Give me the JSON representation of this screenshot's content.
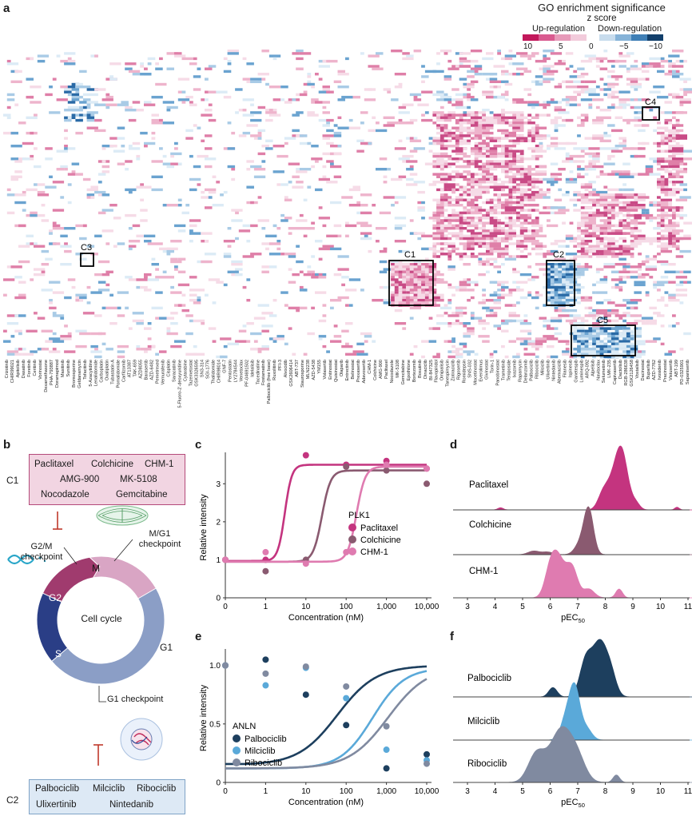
{
  "panels": {
    "a": "a",
    "b": "b",
    "c": "c",
    "d": "d",
    "e": "e",
    "f": "f"
  },
  "legend": {
    "title": "GO enrichment significance",
    "subtitle": "z score",
    "up": "Up-regulation",
    "down": "Down-regulation",
    "ticks": [
      "10",
      "5",
      "0",
      "−5",
      "−10"
    ],
    "up_colors": [
      "#c2185b",
      "#d95a8f",
      "#e79ab9",
      "#f2cbdb"
    ],
    "down_colors": [
      "#c8dced",
      "#86b3d8",
      "#3f7fb6",
      "#123f6b"
    ]
  },
  "heatmap": {
    "cluster_labels": [
      "C1",
      "C2",
      "C3",
      "C4",
      "C5"
    ],
    "drugs": [
      "Crizotinib",
      "CHIR99021",
      "Apitolisib",
      "Dasatinib",
      "Foretinib",
      "Ceritinib",
      "Vorinostat",
      "Dexamethasone",
      "PHA-793887",
      "Doramapimod",
      "Masitinib",
      "Sunitinib",
      "Bromosporine",
      "Geldanamycin",
      "Tofacitinib",
      "5-Azacytidine",
      "Lenalidomide",
      "Carboplatin",
      "Oxaliplatin",
      "Tubastatin A",
      "Pomalidomide",
      "Carfilzomib",
      "AT13387",
      "TAK-659",
      "AZD8055",
      "Barasertib",
      "AZD-6482",
      "Pemetrexed",
      "Vemurafenib",
      "Cisplatin",
      "Saracatinib",
      "5-Fluoro-2'-deoxyuridine",
      "Cytarabine",
      "Tazemetostat",
      "GSK3326595",
      "SN3-314",
      "SGI-1776",
      "Thalidomide",
      "CHIR98014",
      "GNF-7",
      "Pentostatin",
      "LY2784544",
      "Venetoclax",
      "PF-04691502",
      "Idelalisib",
      "Tacedinaline",
      "Fostamatinib",
      "Palbociclib (free base)",
      "Ruxolitinib",
      "PFI-3",
      "Alvocidib",
      "GSK2606414",
      "ABT-737",
      "Staurosporine",
      "MLN2238",
      "AZD-5438",
      "YM155",
      "Volasertib",
      "Entinostat",
      "Quisinostat",
      "Olaparib",
      "Entrectinib",
      "Belinostat",
      "Prexasertib",
      "Adavosertib",
      "CHM-1",
      "Colchicine",
      "AMG-900",
      "Paclitaxel",
      "Nocodazole",
      "MK-5108",
      "Gemcitabine",
      "Epothilone",
      "Bortezomib",
      "Bosutinib",
      "Dinaciclib",
      "BI-847325",
      "Flavopiridol",
      "Omipalisib",
      "Tanespimycin",
      "Zotiraciclib",
      "Rigosertib",
      "Romidepsin",
      "SNS-032",
      "Mocetinostat",
      "Everolimus",
      "Givinostat",
      "Torin-1",
      "Panobinostat",
      "Trametinib",
      "Teniposide",
      "Ixazomib",
      "Rapamycin",
      "Delanzomib",
      "Palbociclib",
      "Ribociclib",
      "Milciclib",
      "Ulixertinib",
      "Nintedanib",
      "Abemaciclib",
      "Filanesib",
      "Ispinesib",
      "Ganetespib",
      "Luminespib",
      "ARQ-092",
      "Alpelisib",
      "Navitoclax",
      "Selumetinib",
      "LMK-235",
      "Capivasertib",
      "Dactolisib",
      "RGB-286638",
      "GSK2126458",
      "Voxtalisib",
      "Dacinostat",
      "Buparlisib",
      "AZD-7762",
      "Ivosidenib",
      "Pracinostat",
      "Vistusertib",
      "ABT-199",
      "PD-0325901",
      "Sapanisertib"
    ]
  },
  "panel_b": {
    "c1_label": "C1",
    "c2_label": "C2",
    "c1_drugs": [
      "Paclitaxel",
      "Colchicine",
      "CHM-1",
      "AMG-900",
      "MK-5108",
      "Nocodazole",
      "Gemcitabine"
    ],
    "c2_drugs": [
      "Palbociclib",
      "Milciclib",
      "Ribociclib",
      "Ulixertinib",
      "Nintedanib"
    ],
    "cycle_center": "Cell cycle",
    "phases": [
      "M",
      "G1",
      "S",
      "G2"
    ],
    "checkpoints": {
      "g2m": "G2/M\ncheckpoint",
      "mg1": "M/G1\ncheckpoint",
      "g1": "G1 checkpoint"
    },
    "colors": {
      "M": "#d9a5c4",
      "G1": "#8b9ec6",
      "S": "#2a3e86",
      "G2": "#a03b6e"
    }
  },
  "chart_data": [
    {
      "id": "c",
      "type": "line",
      "title": "PLK1",
      "xlabel": "Concentration (nM)",
      "ylabel": "Relative intensity",
      "x_ticks": [
        "0",
        "1",
        "10",
        "100",
        "1,000",
        "10,000"
      ],
      "y_ticks": [
        "0",
        "1",
        "2",
        "3"
      ],
      "ylim": [
        0,
        3.7
      ],
      "legend_position": "right",
      "series": [
        {
          "name": "Paclitaxel",
          "color": "#c4347f",
          "points": [
            [
              0,
              1.0
            ],
            [
              1,
              1.0
            ],
            [
              10,
              3.75
            ],
            [
              100,
              3.5
            ],
            [
              1000,
              3.6
            ],
            [
              10000,
              3.4
            ]
          ],
          "ec50": 3,
          "bottom": 0.97,
          "top": 3.5,
          "hill": 5
        },
        {
          "name": "Colchicine",
          "color": "#8a5a70",
          "points": [
            [
              0,
              1.0
            ],
            [
              1,
              0.7
            ],
            [
              10,
              1.0
            ],
            [
              100,
              3.45
            ],
            [
              1000,
              3.35
            ],
            [
              10000,
              3.0
            ]
          ],
          "ec50": 25,
          "bottom": 0.95,
          "top": 3.35,
          "hill": 4
        },
        {
          "name": "CHM-1",
          "color": "#df7bb0",
          "points": [
            [
              0,
              1.0
            ],
            [
              1,
              1.2
            ],
            [
              10,
              0.9
            ],
            [
              100,
              1.2
            ],
            [
              1000,
              3.5
            ],
            [
              10000,
              3.4
            ]
          ],
          "ec50": 180,
          "bottom": 0.95,
          "top": 3.45,
          "hill": 4
        }
      ]
    },
    {
      "id": "d",
      "type": "area",
      "xlabel": "pEC",
      "xlabel_sub": "50",
      "x_ticks": [
        "3",
        "4",
        "5",
        "6",
        "7",
        "8",
        "9",
        "10",
        "11"
      ],
      "xlim": [
        3,
        11.5
      ],
      "series": [
        {
          "name": "Paclitaxel",
          "color": "#c4347f",
          "peaks": [
            [
              8.6,
              1.0,
              0.22
            ],
            [
              8.25,
              0.45,
              0.25
            ],
            [
              7.9,
              0.22,
              0.18
            ],
            [
              9.1,
              0.12,
              0.15
            ],
            [
              4.2,
              0.04,
              0.1
            ],
            [
              10.6,
              0.05,
              0.08
            ]
          ]
        },
        {
          "name": "Colchicine",
          "color": "#8a5a70",
          "peaks": [
            [
              7.4,
              1.0,
              0.17
            ],
            [
              7.1,
              0.25,
              0.2
            ],
            [
              5.4,
              0.08,
              0.2
            ],
            [
              5.9,
              0.06,
              0.2
            ]
          ]
        },
        {
          "name": "CHM-1",
          "color": "#df7bb0",
          "peaks": [
            [
              6.3,
              0.85,
              0.25
            ],
            [
              6.8,
              0.65,
              0.2
            ],
            [
              6.0,
              0.5,
              0.2
            ],
            [
              7.4,
              0.2,
              0.2
            ],
            [
              8.5,
              0.2,
              0.12
            ]
          ]
        }
      ]
    },
    {
      "id": "e",
      "type": "line",
      "title": "ANLN",
      "xlabel": "Concentration (nM)",
      "ylabel": "Relative intensity",
      "x_ticks": [
        "0",
        "1",
        "10",
        "100",
        "1,000",
        "10,000"
      ],
      "y_ticks": [
        "0",
        "0.5",
        "1.0"
      ],
      "ylim": [
        0,
        1.1
      ],
      "legend_position": "left",
      "series": [
        {
          "name": "Palbociclib",
          "color": "#1d3f5e",
          "points": [
            [
              0,
              1.0
            ],
            [
              1,
              1.05
            ],
            [
              10,
              0.75
            ],
            [
              100,
              0.49
            ],
            [
              1000,
              0.12
            ],
            [
              10000,
              0.24
            ]
          ],
          "ec50": 60,
          "bottom": 0.15,
          "top": 1.0,
          "hill": 0.9
        },
        {
          "name": "Milciclib",
          "color": "#5aa9d9",
          "points": [
            [
              0,
              1.0
            ],
            [
              1,
              0.83
            ],
            [
              10,
              0.98
            ],
            [
              100,
              0.72
            ],
            [
              1000,
              0.28
            ],
            [
              10000,
              0.19
            ]
          ],
          "ec50": 450,
          "bottom": 0.12,
          "top": 0.98,
          "hill": 1.1
        },
        {
          "name": "Ribociclib",
          "color": "#808aa0",
          "points": [
            [
              0,
              1.0
            ],
            [
              1,
              0.93
            ],
            [
              10,
              0.99
            ],
            [
              100,
              0.82
            ],
            [
              1000,
              0.48
            ],
            [
              10000,
              0.16
            ]
          ],
          "ec50": 1100,
          "bottom": 0.12,
          "top": 0.99,
          "hill": 0.9
        }
      ]
    },
    {
      "id": "f",
      "type": "area",
      "xlabel": "pEC",
      "xlabel_sub": "50",
      "x_ticks": [
        "3",
        "4",
        "5",
        "6",
        "7",
        "8",
        "9",
        "10",
        "11"
      ],
      "xlim": [
        3,
        11.5
      ],
      "series": [
        {
          "name": "Palbociclib",
          "color": "#1d3f5e",
          "peaks": [
            [
              7.8,
              1.0,
              0.25
            ],
            [
              7.3,
              0.7,
              0.22
            ],
            [
              6.1,
              0.18,
              0.15
            ],
            [
              8.2,
              0.4,
              0.2
            ]
          ]
        },
        {
          "name": "Milciclib",
          "color": "#5aa9d9",
          "peaks": [
            [
              6.9,
              1.0,
              0.18
            ],
            [
              6.6,
              0.5,
              0.2
            ],
            [
              7.3,
              0.25,
              0.2
            ]
          ]
        },
        {
          "name": "Ribociclib",
          "color": "#808aa0",
          "peaks": [
            [
              6.4,
              0.85,
              0.4
            ],
            [
              5.5,
              0.45,
              0.3
            ],
            [
              7.0,
              0.3,
              0.3
            ],
            [
              8.4,
              0.12,
              0.12
            ]
          ]
        }
      ]
    }
  ]
}
